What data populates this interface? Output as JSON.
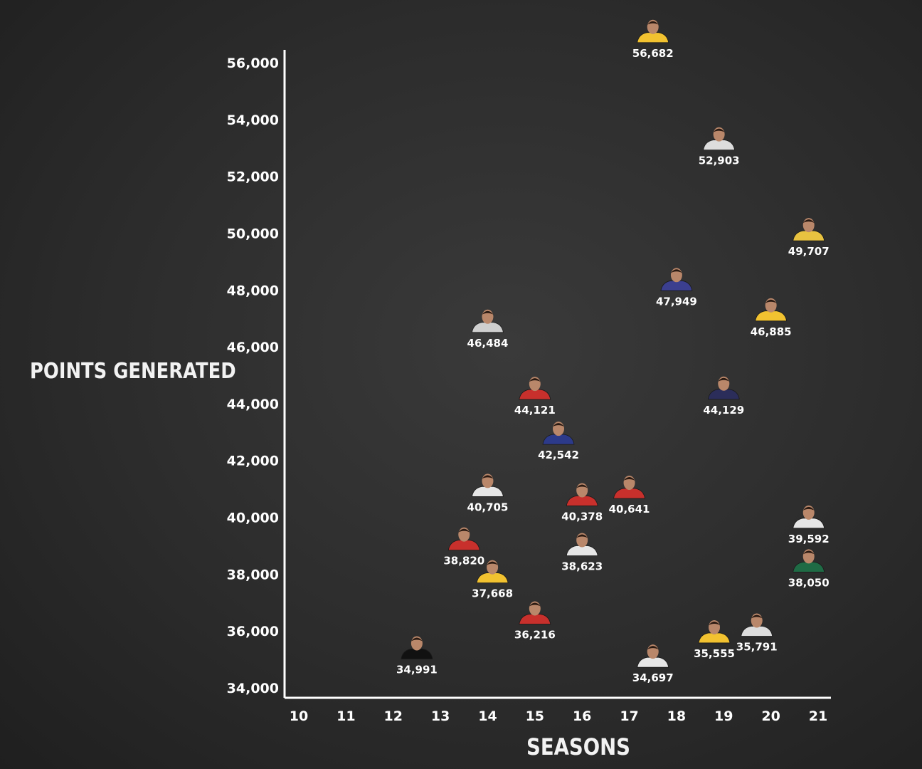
{
  "chart_data": {
    "type": "scatter",
    "title": "",
    "xlabel": "SEASONS",
    "ylabel": "POINTS GENERATED",
    "xlim": [
      10,
      21
    ],
    "ylim": [
      34000,
      56000
    ],
    "x_ticks": [
      "10",
      "11",
      "12",
      "13",
      "14",
      "15",
      "16",
      "17",
      "18",
      "19",
      "20",
      "21"
    ],
    "y_ticks": [
      "34,000",
      "36,000",
      "38,000",
      "40,000",
      "42,000",
      "44,000",
      "46,000",
      "48,000",
      "50,000",
      "52,000",
      "54,000",
      "56,000"
    ],
    "grid": false,
    "points": [
      {
        "x": 17.5,
        "y": 56682,
        "label": "56,682",
        "jersey": "#f2c230"
      },
      {
        "x": 18.9,
        "y": 52903,
        "label": "52,903",
        "jersey": "#dddddd"
      },
      {
        "x": 20.8,
        "y": 49707,
        "label": "49,707",
        "jersey": "#e8c240"
      },
      {
        "x": 18.0,
        "y": 47949,
        "label": "47,949",
        "jersey": "#3b3f8f"
      },
      {
        "x": 20.0,
        "y": 46885,
        "label": "46,885",
        "jersey": "#f2c230"
      },
      {
        "x": 14.0,
        "y": 46484,
        "label": "46,484",
        "jersey": "#cfcfcf"
      },
      {
        "x": 19.0,
        "y": 44129,
        "label": "44,129",
        "jersey": "#2b2d5a"
      },
      {
        "x": 15.0,
        "y": 44121,
        "label": "44,121",
        "jersey": "#c8302c"
      },
      {
        "x": 15.5,
        "y": 42542,
        "label": "42,542",
        "jersey": "#2c3a8a"
      },
      {
        "x": 14.0,
        "y": 40705,
        "label": "40,705",
        "jersey": "#e6e6e6"
      },
      {
        "x": 17.0,
        "y": 40641,
        "label": "40,641",
        "jersey": "#c8302c"
      },
      {
        "x": 16.0,
        "y": 40378,
        "label": "40,378",
        "jersey": "#c8302c"
      },
      {
        "x": 20.8,
        "y": 39592,
        "label": "39,592",
        "jersey": "#e6e6e6"
      },
      {
        "x": 13.5,
        "y": 38820,
        "label": "38,820",
        "jersey": "#c8302c"
      },
      {
        "x": 16.0,
        "y": 38623,
        "label": "38,623",
        "jersey": "#e6e6e6"
      },
      {
        "x": 20.8,
        "y": 38050,
        "label": "38,050",
        "jersey": "#1f6b45"
      },
      {
        "x": 14.1,
        "y": 37668,
        "label": "37,668",
        "jersey": "#f2c230"
      },
      {
        "x": 15.0,
        "y": 36216,
        "label": "36,216",
        "jersey": "#c8302c"
      },
      {
        "x": 19.7,
        "y": 35791,
        "label": "35,791",
        "jersey": "#dddddd"
      },
      {
        "x": 18.8,
        "y": 35555,
        "label": "35,555",
        "jersey": "#f2c230"
      },
      {
        "x": 12.5,
        "y": 34991,
        "label": "34,991",
        "jersey": "#111111"
      },
      {
        "x": 17.5,
        "y": 34697,
        "label": "34,697",
        "jersey": "#e6e6e6"
      }
    ]
  },
  "colors": {
    "background": "#2e2e2e",
    "axis": "#ffffff",
    "text": "#ffffff"
  }
}
